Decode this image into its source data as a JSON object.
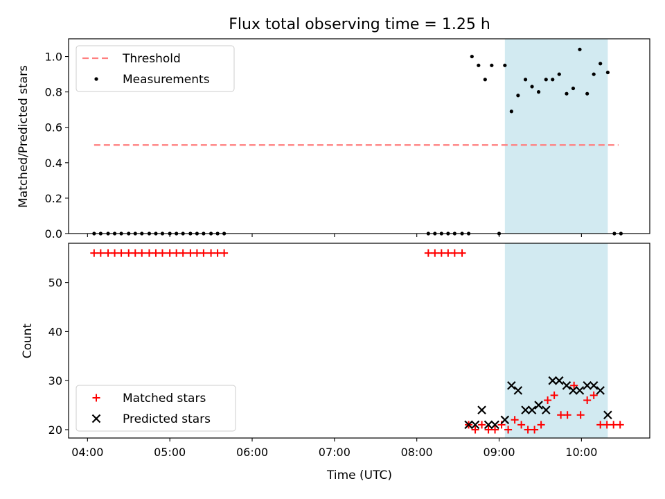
{
  "chart_data": {
    "title": "Flux total observing time = 1.25 h",
    "shared_x": {
      "label": "Time (UTC)",
      "range_hours": [
        3.77,
        10.83
      ],
      "ticks": [
        "04:00",
        "05:00",
        "06:00",
        "07:00",
        "08:00",
        "09:00",
        "10:00"
      ],
      "tick_hours": [
        4,
        5,
        6,
        7,
        8,
        9,
        10
      ]
    },
    "highlight_span_hours": [
      9.07,
      10.32
    ],
    "highlight_color": "#add8e6",
    "panels": [
      {
        "type": "scatter",
        "ylabel": "Matched/Predicted stars",
        "ylim": [
          0,
          1.1
        ],
        "yticks": [
          "0.0",
          "0.2",
          "0.4",
          "0.6",
          "0.8",
          "1.0"
        ],
        "ytick_values": [
          0,
          0.2,
          0.4,
          0.6,
          0.8,
          1.0
        ],
        "legend_position": "upper-left",
        "series": [
          {
            "name": "Threshold",
            "kind": "dashed-line",
            "color": "#ff7f7f",
            "x": [
              4.08,
              10.45
            ],
            "y": [
              0.5,
              0.5
            ]
          },
          {
            "name": "Measurements",
            "kind": "dot",
            "color": "#000000",
            "x": [
              4.08,
              4.16,
              4.25,
              4.33,
              4.41,
              4.5,
              4.58,
              4.66,
              4.75,
              4.83,
              4.91,
              5.0,
              5.08,
              5.16,
              5.25,
              5.33,
              5.41,
              5.5,
              5.58,
              5.66,
              8.14,
              8.22,
              8.3,
              8.38,
              8.46,
              8.55,
              8.63,
              8.67,
              8.75,
              8.83,
              8.91,
              9.0,
              9.07,
              9.15,
              9.23,
              9.32,
              9.4,
              9.48,
              9.57,
              9.65,
              9.73,
              9.82,
              9.9,
              9.98,
              10.07,
              10.15,
              10.23,
              10.32,
              10.4,
              10.48
            ],
            "y": [
              0,
              0,
              0,
              0,
              0,
              0,
              0,
              0,
              0,
              0,
              0,
              0,
              0,
              0,
              0,
              0,
              0,
              0,
              0,
              0,
              0,
              0,
              0,
              0,
              0,
              0,
              0,
              1.0,
              0.95,
              0.87,
              0.95,
              0.0,
              0.95,
              0.69,
              0.78,
              0.87,
              0.83,
              0.8,
              0.87,
              0.87,
              0.9,
              0.79,
              0.82,
              1.04,
              0.79,
              0.9,
              0.96,
              0.91,
              0,
              0
            ]
          }
        ]
      },
      {
        "type": "scatter",
        "ylabel": "Count",
        "ylim": [
          18.3,
          58
        ],
        "yticks": [
          "20",
          "30",
          "40",
          "50"
        ],
        "ytick_values": [
          20,
          30,
          40,
          50
        ],
        "legend_position": "lower-left",
        "series": [
          {
            "name": "Matched stars",
            "kind": "plus",
            "color": "#ff0000",
            "x": [
              4.08,
              4.16,
              4.25,
              4.33,
              4.41,
              4.5,
              4.58,
              4.66,
              4.75,
              4.83,
              4.91,
              5.0,
              5.08,
              5.16,
              5.25,
              5.33,
              5.41,
              5.5,
              5.58,
              5.66,
              8.14,
              8.22,
              8.3,
              8.38,
              8.46,
              8.55,
              8.63,
              8.71,
              8.79,
              8.87,
              8.95,
              9.03,
              9.11,
              9.19,
              9.27,
              9.35,
              9.43,
              9.51,
              9.59,
              9.67,
              9.75,
              9.83,
              9.91,
              9.99,
              10.07,
              10.15,
              10.23,
              10.31,
              10.39,
              10.47
            ],
            "y": [
              56,
              56,
              56,
              56,
              56,
              56,
              56,
              56,
              56,
              56,
              56,
              56,
              56,
              56,
              56,
              56,
              56,
              56,
              56,
              56,
              56,
              56,
              56,
              56,
              56,
              56,
              21,
              20,
              21,
              20,
              20,
              21,
              20,
              22,
              21,
              20,
              20,
              21,
              26,
              27,
              23,
              23,
              29,
              23,
              26,
              27,
              21,
              21,
              21,
              21
            ]
          },
          {
            "name": "Predicted stars",
            "kind": "cross",
            "color": "#000000",
            "x": [
              8.63,
              8.71,
              8.79,
              8.87,
              8.95,
              9.07,
              9.15,
              9.23,
              9.32,
              9.4,
              9.48,
              9.57,
              9.65,
              9.73,
              9.82,
              9.9,
              9.98,
              10.07,
              10.15,
              10.23,
              10.32
            ],
            "y": [
              21,
              21,
              24,
              21,
              21,
              22,
              29,
              28,
              24,
              24,
              25,
              24,
              30,
              30,
              29,
              28,
              28,
              29,
              29,
              28,
              23
            ]
          }
        ]
      }
    ]
  }
}
